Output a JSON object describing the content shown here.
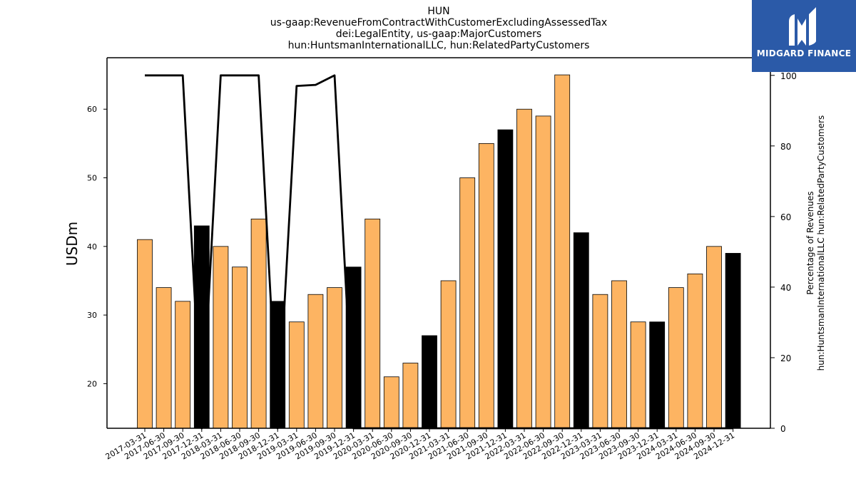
{
  "colors": {
    "bar_normal": "#fdb462",
    "bar_highlight": "#000000",
    "line": "#000000",
    "logo_bg": "#2b5aa8"
  },
  "logo": {
    "text": "MIDGARD FINANCE",
    "icon": "midgard-logo-icon"
  },
  "chart_data": {
    "type": "bar",
    "title_lines": [
      "HUN",
      "us-gaap:RevenueFromContractWithCustomerExcludingAssessedTax",
      "dei:LegalEntity, us-gaap:MajorCustomers",
      "hun:HuntsmanInternationalLLC, hun:RelatedPartyCustomers"
    ],
    "ylabel": "USDm",
    "y2label_lines": [
      "Percentage of Revenues",
      "hun:HuntsmanInternationalLLC hun:RelatedPartyCustomers"
    ],
    "ylim": [
      13.5,
      67.5
    ],
    "yticks": [
      20,
      30,
      40,
      50,
      60
    ],
    "y2lim": [
      0,
      105
    ],
    "y2ticks": [
      0,
      20,
      40,
      60,
      80,
      100
    ],
    "grid": false,
    "categories": [
      "2017-03-31",
      "2017-06-30",
      "2017-09-30",
      "2017-12-31",
      "2018-03-31",
      "2018-06-30",
      "2018-09-30",
      "2018-12-31",
      "2019-03-31",
      "2019-06-30",
      "2019-09-30",
      "2019-12-31",
      "2020-03-31",
      "2020-06-30",
      "2020-09-30",
      "2020-12-31",
      "2021-03-31",
      "2021-06-30",
      "2021-09-30",
      "2021-12-31",
      "2022-03-31",
      "2022-06-30",
      "2022-09-30",
      "2022-12-31",
      "2023-03-31",
      "2023-06-30",
      "2023-09-30",
      "2023-12-31",
      "2024-03-31",
      "2024-06-30",
      "2024-09-30",
      "2024-12-31"
    ],
    "values": [
      41,
      34,
      32,
      43,
      40,
      37,
      44,
      32,
      29,
      33,
      34,
      37,
      44,
      21,
      23,
      27,
      35,
      50,
      55,
      57,
      60,
      59,
      65,
      42,
      33,
      35,
      29,
      29,
      34,
      36,
      40,
      39
    ],
    "highlight": [
      false,
      false,
      false,
      true,
      false,
      false,
      false,
      true,
      false,
      false,
      false,
      true,
      false,
      false,
      false,
      true,
      false,
      false,
      false,
      true,
      false,
      false,
      false,
      true,
      false,
      false,
      false,
      true,
      false,
      false,
      false,
      true
    ],
    "percentage": [
      100,
      100,
      100,
      null,
      100,
      100,
      100,
      null,
      97,
      97.3,
      100,
      null,
      null,
      null,
      null,
      null,
      null,
      null,
      null,
      null,
      null,
      null,
      null,
      null,
      null,
      null,
      null,
      null,
      null,
      null,
      null,
      null
    ]
  }
}
